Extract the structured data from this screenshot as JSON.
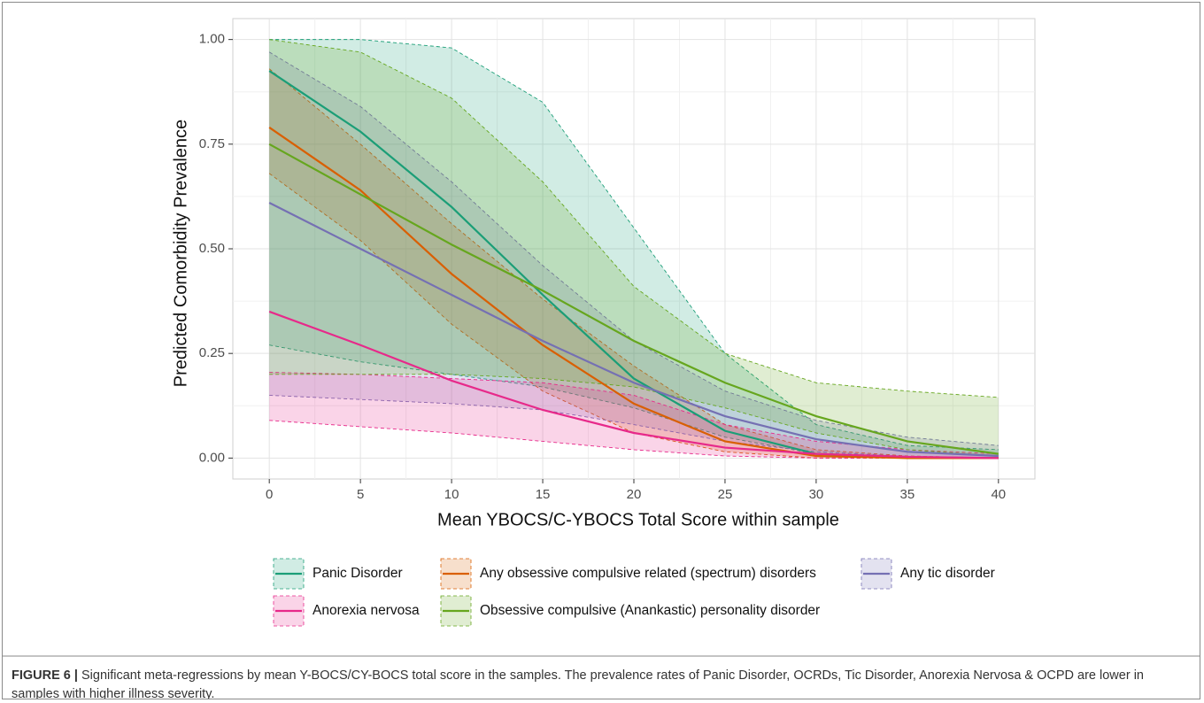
{
  "chart_data": {
    "type": "line",
    "xlabel": "Mean YBOCS/C-YBOCS Total Score within sample",
    "ylabel": "Predicted Comorbidity Prevalence",
    "x": [
      0,
      5,
      10,
      15,
      20,
      25,
      30,
      35,
      40
    ],
    "xlim": [
      -2,
      42
    ],
    "xticks": [
      0,
      5,
      10,
      15,
      20,
      25,
      30,
      35,
      40
    ],
    "ylim": [
      -0.05,
      1.05
    ],
    "yticks": [
      {
        "value": 0,
        "label": "0.00"
      },
      {
        "value": 0.25,
        "label": "0.25"
      },
      {
        "value": 0.5,
        "label": "0.50"
      },
      {
        "value": 0.75,
        "label": "0.75"
      },
      {
        "value": 1,
        "label": "1.00"
      }
    ],
    "grid": true,
    "legend": "bottom",
    "series": [
      {
        "name": "Panic Disorder",
        "color": "#1b9e77",
        "values": [
          0.925,
          0.78,
          0.6,
          0.39,
          0.19,
          0.065,
          0.01,
          0.002,
          0
        ],
        "lower": [
          0.27,
          0.23,
          0.2,
          0.17,
          0.12,
          0.05,
          0.01,
          0,
          0
        ],
        "upper": [
          1,
          1,
          0.98,
          0.85,
          0.55,
          0.25,
          0.08,
          0.03,
          0.02
        ]
      },
      {
        "name": "Any obsessive compulsive related (spectrum) disorders",
        "color": "#d95f02",
        "values": [
          0.79,
          0.64,
          0.44,
          0.27,
          0.13,
          0.04,
          0.005,
          0,
          0
        ],
        "lower": [
          0.68,
          0.52,
          0.32,
          0.16,
          0.06,
          0.015,
          0,
          0,
          0
        ],
        "upper": [
          0.93,
          0.75,
          0.56,
          0.38,
          0.22,
          0.08,
          0.02,
          0.005,
          0
        ]
      },
      {
        "name": "Any tic disorder",
        "color": "#7570b3",
        "values": [
          0.61,
          0.5,
          0.39,
          0.28,
          0.18,
          0.1,
          0.045,
          0.015,
          0.005
        ],
        "lower": [
          0.15,
          0.14,
          0.13,
          0.115,
          0.08,
          0.04,
          0.015,
          0.004,
          0
        ],
        "upper": [
          0.97,
          0.84,
          0.66,
          0.46,
          0.28,
          0.16,
          0.09,
          0.05,
          0.03
        ]
      },
      {
        "name": "Anorexia nervosa",
        "color": "#e7298a",
        "values": [
          0.35,
          0.27,
          0.185,
          0.115,
          0.06,
          0.025,
          0.01,
          0.003,
          0
        ],
        "lower": [
          0.09,
          0.075,
          0.06,
          0.04,
          0.02,
          0.005,
          0,
          0,
          0
        ],
        "upper": [
          0.205,
          0.2,
          0.19,
          0.18,
          0.15,
          0.08,
          0.04,
          0.02,
          0.01
        ]
      },
      {
        "name": "Obsessive compulsive (Anankastic) personality disorder",
        "color": "#66a61e",
        "values": [
          0.75,
          0.63,
          0.51,
          0.4,
          0.28,
          0.18,
          0.1,
          0.04,
          0.01
        ],
        "lower": [
          0.2,
          0.2,
          0.2,
          0.19,
          0.17,
          0.12,
          0.06,
          0.02,
          0.005
        ],
        "upper": [
          1,
          0.97,
          0.86,
          0.66,
          0.41,
          0.25,
          0.18,
          0.16,
          0.145
        ]
      }
    ]
  },
  "caption_label": "FIGURE 6 |",
  "caption": "Significant meta-regressions by mean Y-BOCS/CY-BOCS total score in the samples. The prevalence rates of Panic Disorder, OCRDs, Tic Disorder, Anorexia Nervosa & OCPD are lower in samples with higher illness severity."
}
